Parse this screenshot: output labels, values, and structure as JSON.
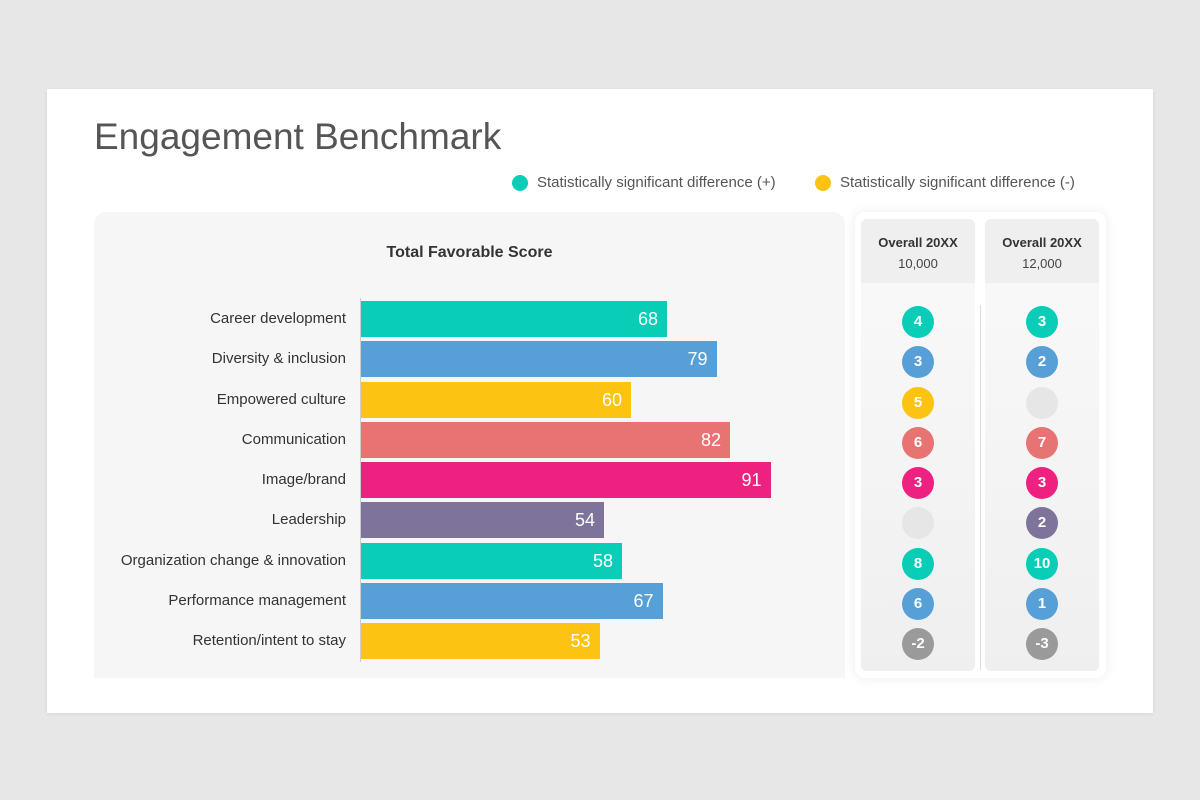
{
  "title": "Engagement Benchmark",
  "legend": [
    {
      "label": "Statistically significant difference (+)",
      "color": "#0ACDB8"
    },
    {
      "label": "Statistically significant difference (-)",
      "color": "#FCC312"
    }
  ],
  "chart_data": {
    "type": "bar",
    "orientation": "horizontal",
    "title": "Total Favorable Score",
    "xlim": [
      0,
      100
    ],
    "categories": [
      "Career development",
      "Diversity & inclusion",
      "Empowered culture",
      "Communication",
      "Image/brand",
      "Leadership",
      "Organization change & innovation",
      "Performance management",
      "Retention/intent to stay"
    ],
    "values": [
      68,
      79,
      60,
      82,
      91,
      54,
      58,
      67,
      53
    ],
    "colors": [
      "#0ACDB8",
      "#579FD7",
      "#FCC312",
      "#E87373",
      "#EE2080",
      "#7E739B",
      "#0ACDB8",
      "#579FD7",
      "#FCC312"
    ]
  },
  "comparisons": [
    {
      "title": "Overall 20XX",
      "count": "10,000",
      "values": [
        "4",
        "3",
        "5",
        "6",
        "3",
        "",
        "8",
        "6",
        "-2"
      ]
    },
    {
      "title": "Overall 20XX",
      "count": "12,000",
      "values": [
        "3",
        "2",
        "",
        "7",
        "3",
        "2",
        "10",
        "1",
        "-3"
      ]
    }
  ],
  "colors": {
    "negative": "#9a9a9a",
    "empty": "#e6e6e6"
  }
}
